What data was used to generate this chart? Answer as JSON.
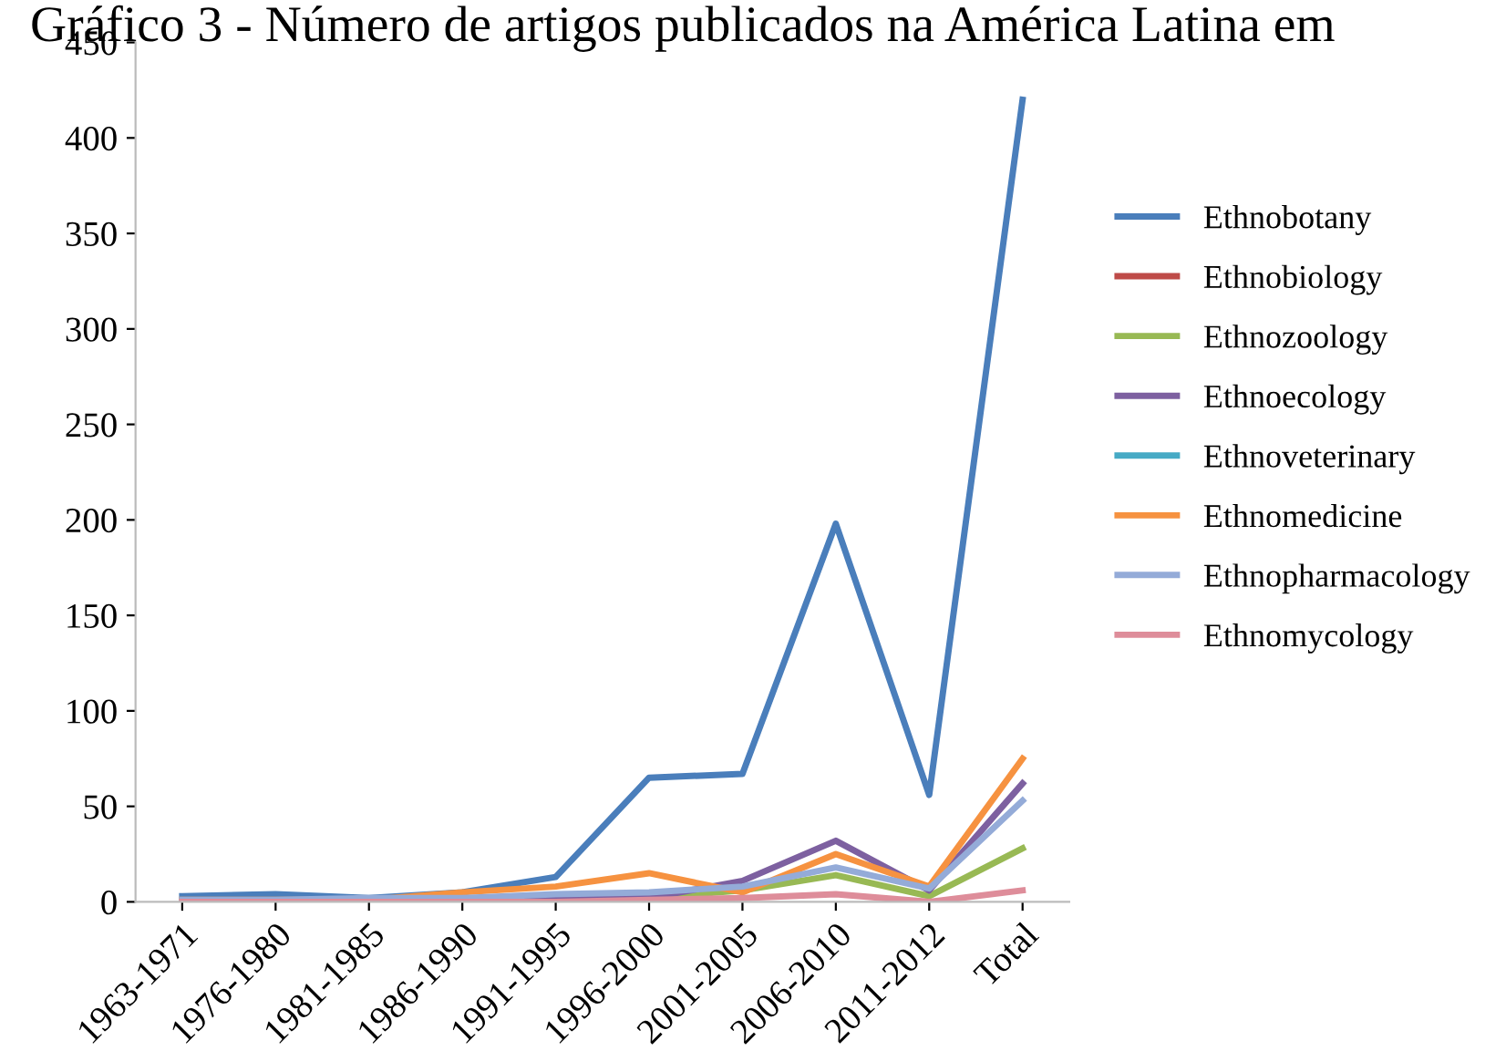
{
  "chart_data": {
    "type": "line",
    "title": "Gráfico 3 - Número de artigos publicados na América Latina em",
    "categories": [
      "1963-1971",
      "1976-1980",
      "1981-1985",
      "1986-1990",
      "1991-1995",
      "1996-2000",
      "2001-2005",
      "2006-2010",
      "2011-2012",
      "Total"
    ],
    "series": [
      {
        "name": "Ethnobotany",
        "color": "#4a7ebb",
        "values": [
          3,
          4,
          2,
          5,
          13,
          65,
          67,
          198,
          56,
          420
        ]
      },
      {
        "name": "Ethnobiology",
        "color": "#be4b48",
        "values": [
          null,
          null,
          null,
          null,
          null,
          null,
          null,
          null,
          null,
          null
        ]
      },
      {
        "name": "Ethnozoology",
        "color": "#98b954",
        "values": [
          null,
          null,
          null,
          null,
          1,
          2,
          6,
          14,
          3,
          28
        ]
      },
      {
        "name": "Ethnoecology",
        "color": "#7d60a0",
        "values": [
          0,
          0,
          0,
          0,
          3,
          2,
          11,
          32,
          6,
          62
        ]
      },
      {
        "name": "Ethnoveterinary",
        "color": "#46aac5",
        "values": [
          null,
          null,
          null,
          null,
          null,
          null,
          null,
          null,
          null,
          null
        ]
      },
      {
        "name": "Ethnomedicine",
        "color": "#f69240",
        "values": [
          1,
          1,
          1,
          5,
          8,
          15,
          5,
          25,
          8,
          75
        ]
      },
      {
        "name": "Ethnopharmacology",
        "color": "#94abd8",
        "values": [
          1,
          1,
          2,
          2,
          4,
          5,
          8,
          18,
          7,
          53
        ]
      },
      {
        "name": "Ethnomycology",
        "color": "#de8d9a",
        "values": [
          0,
          0,
          0,
          0,
          0,
          1,
          2,
          4,
          0,
          6
        ]
      }
    ],
    "ylim": [
      0,
      450
    ],
    "yticks": [
      0,
      50,
      100,
      150,
      200,
      250,
      300,
      350,
      400,
      450
    ],
    "grid": false,
    "legend": "right",
    "marker": "none",
    "line_style": "solid"
  }
}
